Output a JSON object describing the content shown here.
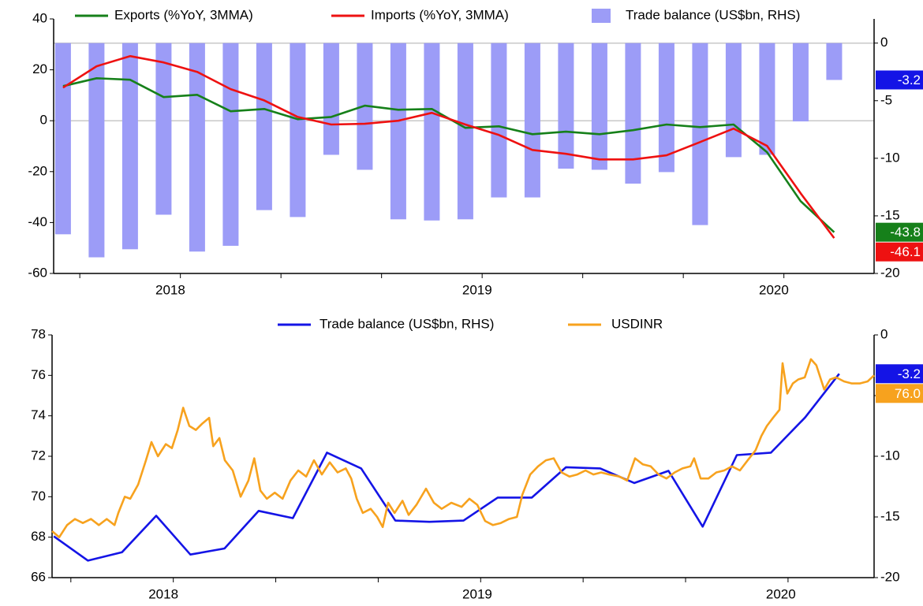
{
  "chart_data": [
    {
      "type": "combo",
      "xlim": [
        -0.28,
        24.19
      ],
      "xticks": [
        0.5,
        3.5,
        6.5,
        9.5,
        12.5,
        15.5,
        18.5,
        21.5
      ],
      "xlabels": [
        {
          "value": 3.2,
          "label": "2018"
        },
        {
          "value": 12.35,
          "label": "2019"
        },
        {
          "value": 21.2,
          "label": "2020"
        }
      ],
      "ylim": [
        -60,
        40
      ],
      "yticks": [
        -60,
        -40,
        -20,
        0,
        20,
        40
      ],
      "y2lim": [
        -20,
        2.1
      ],
      "y2ticks": [
        -20,
        -15,
        -10,
        -5,
        0
      ],
      "zero_lines": true,
      "series": [
        {
          "name": "Exports (%YoY, 3MMA)",
          "kind": "line",
          "color": "#16801a",
          "end_label": "-43.8",
          "x": [
            0,
            1,
            2,
            3,
            4,
            5,
            6,
            7,
            8,
            9,
            10,
            11,
            12,
            13,
            14,
            15,
            16,
            17,
            18,
            19,
            20,
            21,
            22,
            23
          ],
          "values": [
            13.6,
            16.7,
            16.1,
            9.3,
            10.2,
            3.7,
            4.6,
            0.6,
            1.5,
            5.9,
            4.3,
            4.6,
            -2.8,
            -2.2,
            -5.3,
            -4.3,
            -5.3,
            -3.7,
            -1.5,
            -2.5,
            -1.5,
            -12.4,
            -31.6,
            -43.8
          ]
        },
        {
          "name": "Imports (%YoY, 3MMA)",
          "kind": "line",
          "color": "#ee1111",
          "end_label": "-46.1",
          "x": [
            0,
            1,
            2,
            3,
            4,
            5,
            6,
            7,
            8,
            9,
            10,
            11,
            12,
            13,
            14,
            15,
            16,
            17,
            18,
            19,
            20,
            21,
            22,
            23
          ],
          "values": [
            13.0,
            21.4,
            25.4,
            22.9,
            19.2,
            12.4,
            8.0,
            1.5,
            -1.5,
            -1.2,
            0,
            3.1,
            -1.5,
            -5.6,
            -11.5,
            -13.0,
            -15.2,
            -15.2,
            -13.6,
            -8.4,
            -3.1,
            -9.9,
            -28.5,
            -46.1
          ]
        },
        {
          "name": "Trade balance (US$bn, RHS)",
          "kind": "bar",
          "axis": "y2",
          "color": "#9c9cf7",
          "end_label": "-3.2",
          "end_label_color": "#1414e6",
          "x": [
            0,
            1,
            2,
            3,
            4,
            5,
            6,
            7,
            8,
            9,
            10,
            11,
            12,
            13,
            14,
            15,
            16,
            17,
            18,
            19,
            20,
            21,
            22,
            23
          ],
          "values": [
            -16.6,
            -18.6,
            -17.9,
            -14.9,
            -18.1,
            -17.6,
            -14.5,
            -15.1,
            -9.7,
            -11.0,
            -15.3,
            -15.4,
            -15.3,
            -13.4,
            -13.4,
            -10.9,
            -11.0,
            -12.2,
            -11.2,
            -15.8,
            -9.9,
            -9.7,
            -6.8,
            -3.2
          ]
        }
      ]
    },
    {
      "type": "line",
      "xlim": [
        -0.05,
        24.02
      ],
      "xticks": [
        0.5,
        3.5,
        6.5,
        9.5,
        12.5,
        15.5,
        18.5,
        21.5
      ],
      "xlabels": [
        {
          "value": 3.21,
          "label": "2018"
        },
        {
          "value": 12.4,
          "label": "2019"
        },
        {
          "value": 21.29,
          "label": "2020"
        }
      ],
      "ylim": [
        66,
        78
      ],
      "yticks": [
        66,
        68,
        70,
        72,
        74,
        76,
        78
      ],
      "y2lim": [
        -20,
        0
      ],
      "y2ticks": [
        -20,
        -15,
        -10,
        -5,
        0
      ],
      "zero_lines": false,
      "series": [
        {
          "name": "Trade balance (US$bn, RHS)",
          "kind": "line",
          "axis": "y2",
          "color": "#1414e6",
          "end_label": "-3.2",
          "x": [
            0,
            1,
            2,
            3,
            4,
            5,
            6,
            7,
            8,
            9,
            10,
            11,
            12,
            13,
            14,
            15,
            16,
            17,
            18,
            19,
            20,
            21,
            22,
            23
          ],
          "values": [
            -16.6,
            -18.6,
            -17.9,
            -14.9,
            -18.1,
            -17.6,
            -14.5,
            -15.1,
            -9.7,
            -11.0,
            -15.3,
            -15.4,
            -15.3,
            -13.4,
            -13.4,
            -10.9,
            -11.0,
            -12.2,
            -11.2,
            -15.8,
            -9.9,
            -9.7,
            -6.8,
            -3.2
          ]
        },
        {
          "name": "USDINR",
          "kind": "line",
          "color": "#f7a21e",
          "end_label": "76.0",
          "x": [
            -0.05,
            0.16,
            0.39,
            0.62,
            0.85,
            1.09,
            1.32,
            1.55,
            1.78,
            1.89,
            2.08,
            2.24,
            2.47,
            2.7,
            2.86,
            3.05,
            3.28,
            3.46,
            3.63,
            3.79,
            3.97,
            4.16,
            4.34,
            4.55,
            4.67,
            4.85,
            5.01,
            5.24,
            5.47,
            5.7,
            5.87,
            6.05,
            6.24,
            6.47,
            6.7,
            6.93,
            7.16,
            7.39,
            7.62,
            7.85,
            8.08,
            8.31,
            8.55,
            8.71,
            8.87,
            9.05,
            9.28,
            9.47,
            9.63,
            9.79,
            9.98,
            10.21,
            10.39,
            10.62,
            10.9,
            11.13,
            11.36,
            11.64,
            11.94,
            12.17,
            12.4,
            12.63,
            12.86,
            13.09,
            13.33,
            13.56,
            13.72,
            13.95,
            14.18,
            14.41,
            14.64,
            14.87,
            15.1,
            15.33,
            15.57,
            15.8,
            16.03,
            16.26,
            16.56,
            16.79,
            17.02,
            17.25,
            17.48,
            17.71,
            17.94,
            18.18,
            18.41,
            18.64,
            18.75,
            18.94,
            19.17,
            19.4,
            19.63,
            19.86,
            20.09,
            20.32,
            20.55,
            20.72,
            20.88,
            21.06,
            21.25,
            21.34,
            21.48,
            21.64,
            21.8,
            21.99,
            22.17,
            22.33,
            22.56,
            22.73,
            22.91,
            23.14,
            23.37,
            23.6,
            23.83,
            24.02
          ],
          "values": [
            68.3,
            68.0,
            68.6,
            68.9,
            68.7,
            68.9,
            68.6,
            68.9,
            68.6,
            69.2,
            70.0,
            69.9,
            70.6,
            71.8,
            72.7,
            72.0,
            72.6,
            72.4,
            73.3,
            74.4,
            73.5,
            73.3,
            73.6,
            73.9,
            72.5,
            72.9,
            71.8,
            71.3,
            70.0,
            70.8,
            71.9,
            70.3,
            69.9,
            70.2,
            69.9,
            70.8,
            71.3,
            71.0,
            71.8,
            71.1,
            71.7,
            71.2,
            71.4,
            70.9,
            69.9,
            69.2,
            69.4,
            69.0,
            68.5,
            69.7,
            69.2,
            69.8,
            69.1,
            69.6,
            70.4,
            69.7,
            69.4,
            69.7,
            69.5,
            69.9,
            69.6,
            68.8,
            68.6,
            68.7,
            68.9,
            69.0,
            70.1,
            71.1,
            71.5,
            71.8,
            71.9,
            71.2,
            71.0,
            71.1,
            71.3,
            71.1,
            71.2,
            71.1,
            71.0,
            70.8,
            71.9,
            71.6,
            71.5,
            71.1,
            70.9,
            71.2,
            71.4,
            71.5,
            71.9,
            70.9,
            70.9,
            71.2,
            71.3,
            71.5,
            71.3,
            71.8,
            72.3,
            73.0,
            73.5,
            73.9,
            74.3,
            76.6,
            75.1,
            75.6,
            75.8,
            75.9,
            76.8,
            76.5,
            75.3,
            75.8,
            75.9,
            75.7,
            75.6,
            75.6,
            75.7,
            76.0
          ]
        }
      ]
    }
  ]
}
